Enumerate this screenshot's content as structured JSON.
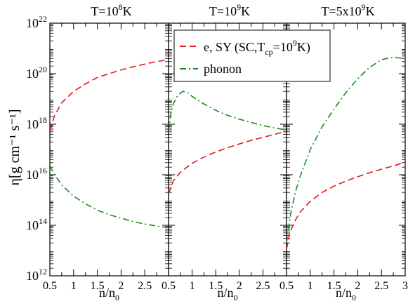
{
  "chart_data": [
    {
      "type": "line",
      "title_parts": [
        "T=10",
        "8",
        "K"
      ],
      "xlim": [
        0.5,
        3.0
      ],
      "ylim_log10": [
        12,
        22
      ],
      "x_ticks": [
        0.5,
        1,
        1.5,
        2,
        2.5
      ],
      "x_tick_labels": [
        "0.5",
        "1",
        "1.5",
        "2",
        "2.5"
      ],
      "series": [
        {
          "key": "electron",
          "color": "#e8141c",
          "dash": "9,5",
          "x": [
            0.5,
            0.6,
            0.75,
            1.0,
            1.25,
            1.5,
            1.75,
            2.0,
            2.25,
            2.5,
            2.75,
            3.0
          ],
          "log10_y": [
            17.75,
            18.35,
            18.85,
            19.3,
            19.6,
            19.85,
            20.0,
            20.15,
            20.27,
            20.38,
            20.48,
            20.55
          ]
        },
        {
          "key": "phonon",
          "color": "#1a8a1a",
          "dash": "9,4,2,4",
          "x": [
            0.5,
            0.6,
            0.75,
            1.0,
            1.25,
            1.5,
            1.75,
            2.0,
            2.25,
            2.5,
            2.75,
            3.0
          ],
          "log10_y": [
            16.35,
            16.0,
            15.6,
            15.15,
            14.85,
            14.6,
            14.42,
            14.28,
            14.15,
            14.05,
            13.97,
            13.9
          ]
        }
      ]
    },
    {
      "type": "line",
      "title_parts": [
        "T=10",
        "9",
        "K"
      ],
      "xlim": [
        0.5,
        3.0
      ],
      "ylim_log10": [
        12,
        22
      ],
      "x_ticks": [
        0.5,
        1,
        1.5,
        2,
        2.5
      ],
      "x_tick_labels": [
        "0.5",
        "1",
        "1.5",
        "2",
        "2.5"
      ],
      "series": [
        {
          "key": "electron",
          "color": "#e8141c",
          "dash": "9,5",
          "x": [
            0.5,
            0.6,
            0.75,
            1.0,
            1.25,
            1.5,
            1.75,
            2.0,
            2.25,
            2.5,
            2.75,
            3.0
          ],
          "log10_y": [
            15.25,
            15.75,
            16.1,
            16.45,
            16.7,
            16.9,
            17.07,
            17.22,
            17.36,
            17.48,
            17.6,
            17.72
          ]
        },
        {
          "key": "phonon",
          "color": "#1a8a1a",
          "dash": "9,4,2,4",
          "x": [
            0.5,
            0.55,
            0.6,
            0.7,
            0.8,
            0.9,
            1.0,
            1.25,
            1.5,
            1.75,
            2.0,
            2.25,
            2.5,
            2.75,
            3.0
          ],
          "log10_y": [
            17.7,
            18.45,
            18.8,
            19.15,
            19.3,
            19.25,
            19.1,
            18.8,
            18.55,
            18.35,
            18.2,
            18.07,
            17.95,
            17.85,
            17.77
          ]
        }
      ]
    },
    {
      "type": "line",
      "title_parts": [
        "T=5x10",
        "9",
        "K"
      ],
      "xlim": [
        0.5,
        3.0
      ],
      "ylim_log10": [
        12,
        22
      ],
      "x_ticks": [
        0.5,
        1,
        1.5,
        2,
        2.5,
        3
      ],
      "x_tick_labels": [
        "0.5",
        "1",
        "1.5",
        "2",
        "2.5",
        "3"
      ],
      "series": [
        {
          "key": "electron",
          "color": "#e8141c",
          "dash": "9,5",
          "x": [
            0.5,
            0.55,
            0.6,
            0.7,
            0.8,
            1.0,
            1.25,
            1.5,
            1.75,
            2.0,
            2.25,
            2.5,
            2.75,
            3.0
          ],
          "log10_y": [
            13.05,
            13.55,
            13.85,
            14.25,
            14.55,
            14.95,
            15.3,
            15.55,
            15.75,
            15.92,
            16.08,
            16.22,
            16.35,
            16.5
          ]
        },
        {
          "key": "phonon",
          "color": "#1a8a1a",
          "dash": "9,4,2,4",
          "x": [
            0.5,
            0.55,
            0.6,
            0.7,
            0.8,
            1.0,
            1.25,
            1.5,
            1.75,
            2.0,
            2.25,
            2.5,
            2.6,
            2.75,
            2.9,
            3.0
          ],
          "log10_y": [
            13.3,
            14.0,
            14.6,
            15.4,
            16.0,
            17.0,
            17.9,
            18.6,
            19.25,
            19.8,
            20.25,
            20.55,
            20.6,
            20.65,
            20.62,
            20.6
          ]
        }
      ]
    }
  ],
  "y_axis": {
    "label": "η[g cm⁻¹ s⁻¹]",
    "tick_mantissa": "10",
    "tick_exponents": [
      "12",
      "14",
      "16",
      "18",
      "20",
      "22"
    ]
  },
  "x_axis": {
    "label_main": "n/n",
    "label_sub": "0"
  },
  "legend": {
    "items": [
      {
        "key": "electron",
        "text_main": "e, SY (SC,T",
        "text_sub": "cp",
        "text_mid": "=10",
        "text_sup": "9",
        "text_end": "K)"
      },
      {
        "key": "phonon",
        "text_main": "phonon"
      }
    ]
  }
}
